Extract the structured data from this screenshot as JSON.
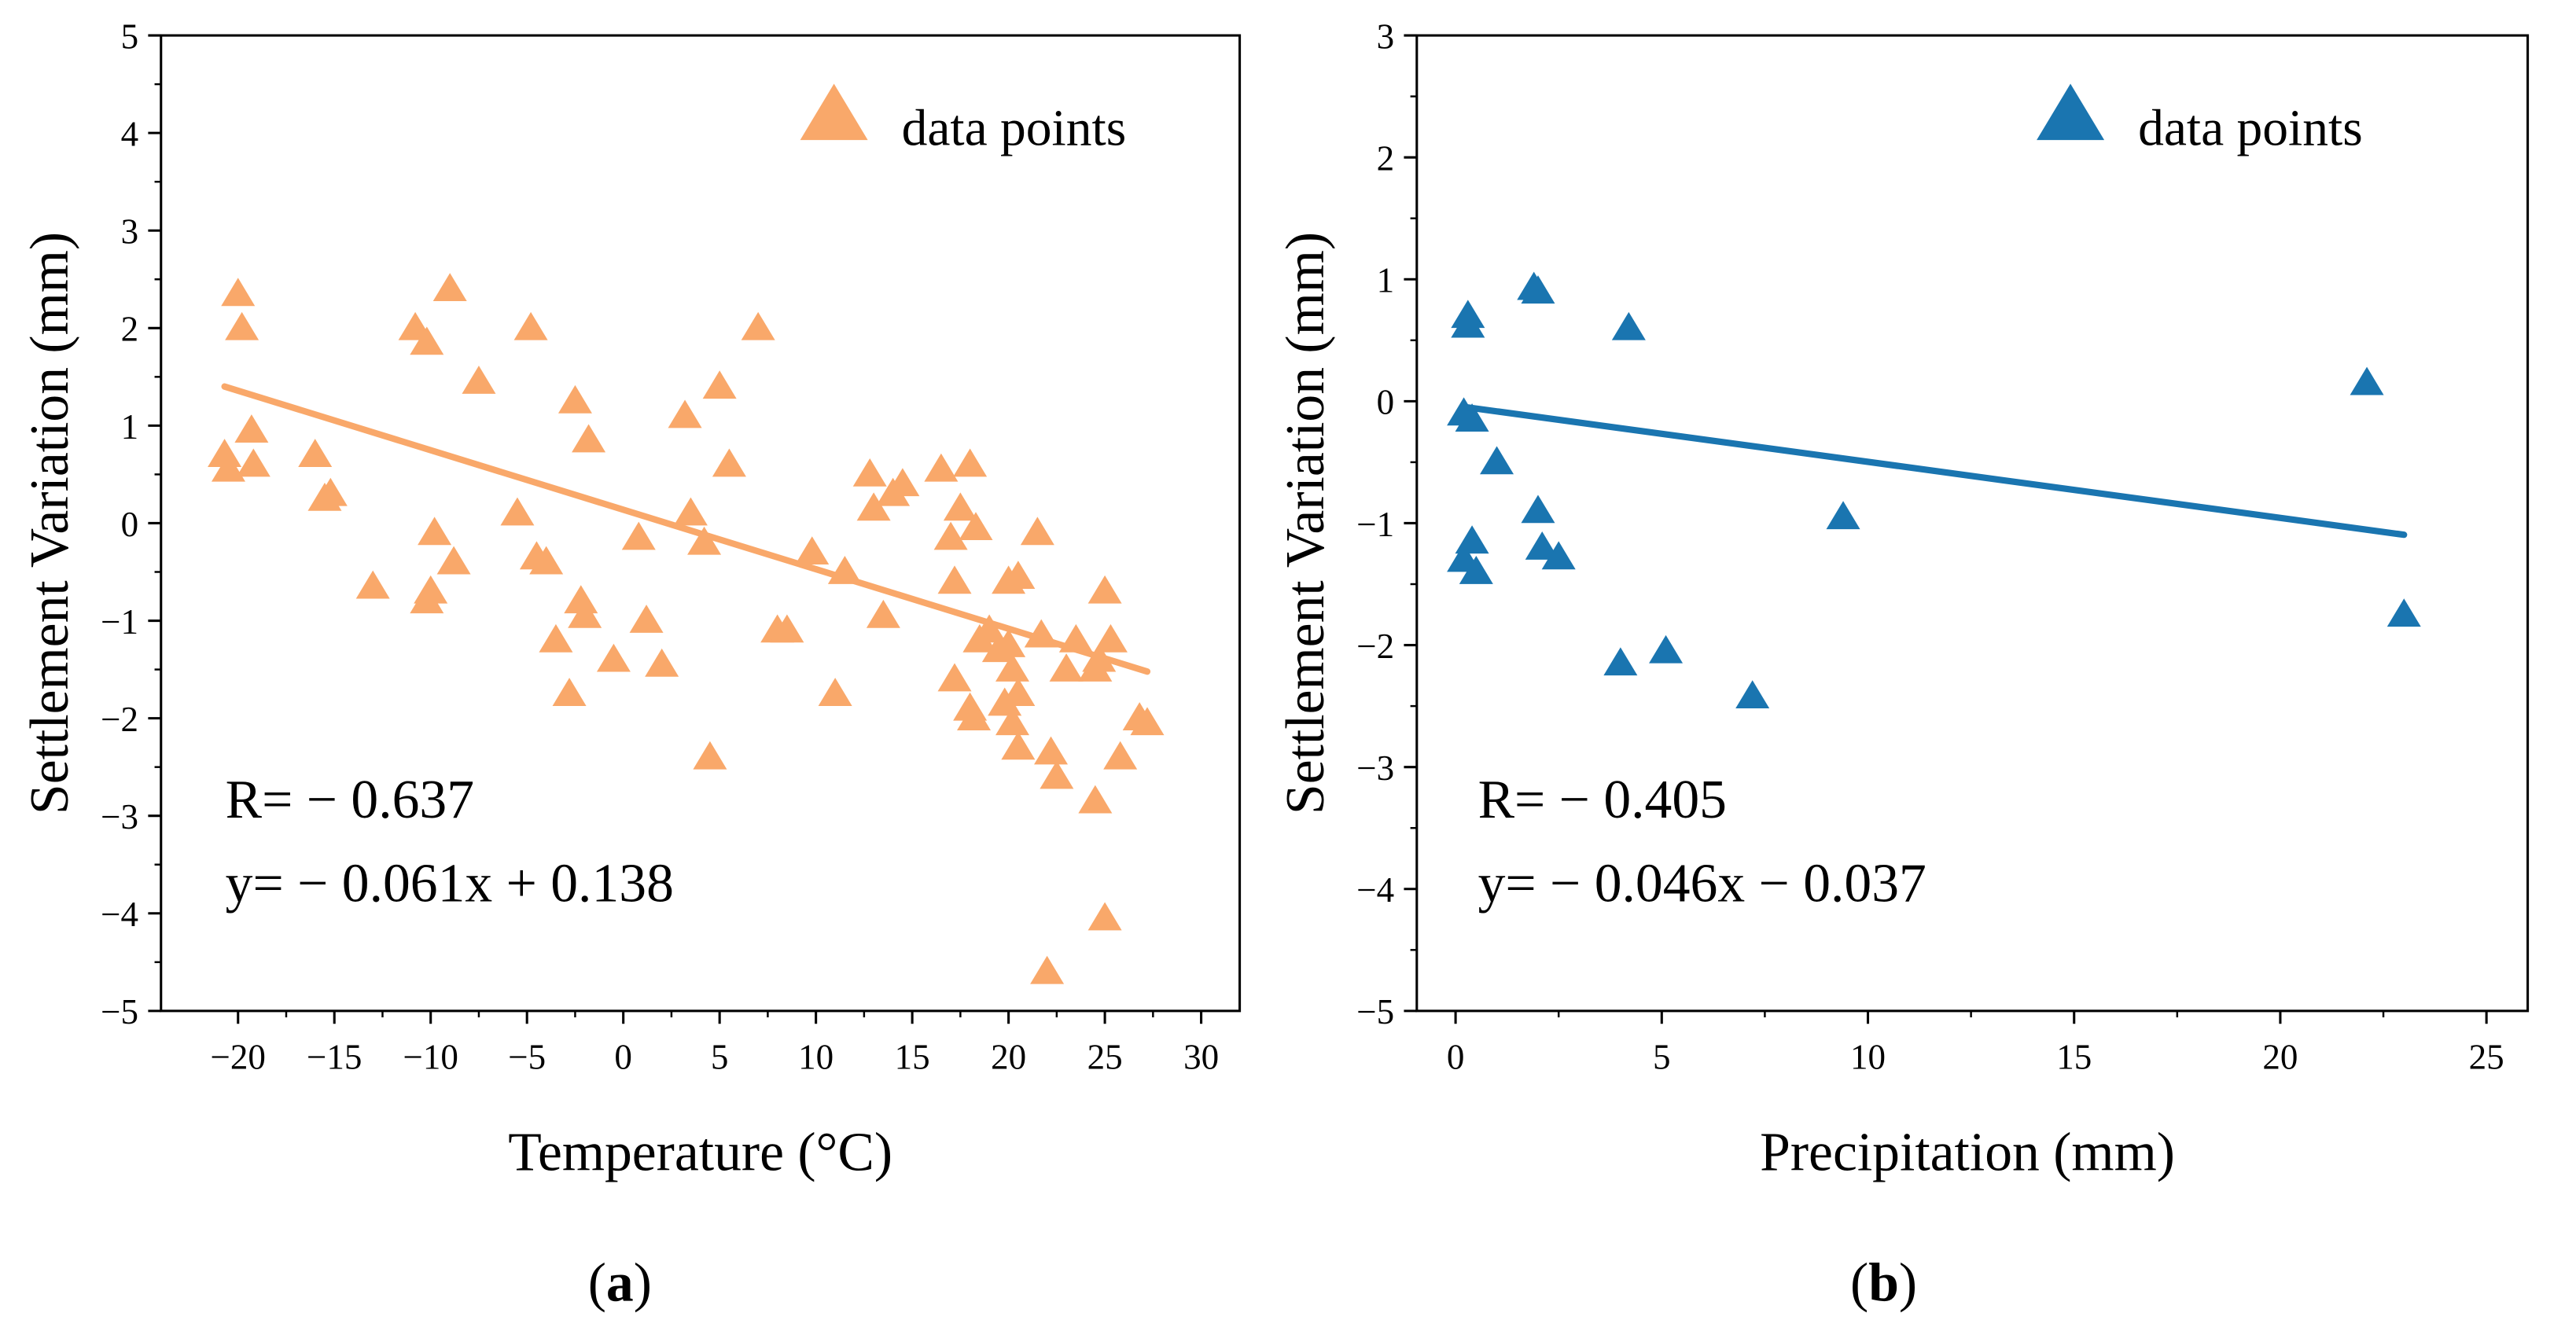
{
  "chart_data": [
    {
      "type": "scatter",
      "panel_label": "(a)",
      "panel_letter": "a",
      "xlabel": "Temperature (°C)",
      "ylabel": "Settlement Variation (mm)",
      "xlim": [
        -24,
        32
      ],
      "ylim": [
        -5,
        5
      ],
      "xticks": [
        -20,
        -15,
        -10,
        -5,
        0,
        5,
        10,
        15,
        20,
        25,
        30
      ],
      "yticks": [
        -5,
        -4,
        -3,
        -2,
        -1,
        0,
        1,
        2,
        3,
        4,
        5
      ],
      "color": "#F9A86A",
      "legend": {
        "label": "data points",
        "placement": "top-right"
      },
      "annotation_r": "R= − 0.637",
      "annotation_eq": "y= − 0.061x + 0.138",
      "fit": {
        "slope": -0.061,
        "intercept": 0.138,
        "x_range": [
          -20.7,
          27.2
        ]
      },
      "points": [
        [
          -20.5,
          0.55
        ],
        [
          -20.7,
          0.7
        ],
        [
          -20,
          2.35
        ],
        [
          -19.8,
          2.0
        ],
        [
          -19.3,
          0.95
        ],
        [
          -19.2,
          0.6
        ],
        [
          -16,
          0.7
        ],
        [
          -15.5,
          0.25
        ],
        [
          -15.2,
          0.3
        ],
        [
          -13,
          -0.65
        ],
        [
          -10.8,
          2.0
        ],
        [
          -10.2,
          1.85
        ],
        [
          -10,
          -0.7
        ],
        [
          -10.2,
          -0.8
        ],
        [
          -9.8,
          -0.1
        ],
        [
          -9,
          2.4
        ],
        [
          -8.8,
          -0.4
        ],
        [
          -7.5,
          1.45
        ],
        [
          -5.5,
          0.1
        ],
        [
          -4.8,
          2.0
        ],
        [
          -4.5,
          -0.35
        ],
        [
          -4,
          -0.4
        ],
        [
          -3.5,
          -1.2
        ],
        [
          -2.8,
          -1.75
        ],
        [
          -2.5,
          1.25
        ],
        [
          -2.2,
          -0.8
        ],
        [
          -2,
          -0.95
        ],
        [
          -1.8,
          0.85
        ],
        [
          -0.5,
          -1.4
        ],
        [
          0.8,
          -0.15
        ],
        [
          1.2,
          -1.0
        ],
        [
          2,
          -1.45
        ],
        [
          3.2,
          1.1
        ],
        [
          3.5,
          0.1
        ],
        [
          4.2,
          -0.2
        ],
        [
          4.5,
          -2.4
        ],
        [
          5,
          1.4
        ],
        [
          5.5,
          0.6
        ],
        [
          7,
          2.0
        ],
        [
          8,
          -1.1
        ],
        [
          8.5,
          -1.1
        ],
        [
          9.8,
          -0.3
        ],
        [
          11,
          -1.75
        ],
        [
          11.5,
          -0.5
        ],
        [
          12.8,
          0.5
        ],
        [
          13,
          0.15
        ],
        [
          13.5,
          -0.95
        ],
        [
          14,
          0.3
        ],
        [
          14.5,
          0.4
        ],
        [
          16.5,
          0.55
        ],
        [
          17,
          -0.15
        ],
        [
          17.2,
          -0.6
        ],
        [
          17.2,
          -1.6
        ],
        [
          17.5,
          0.15
        ],
        [
          18,
          0.6
        ],
        [
          18,
          -1.9
        ],
        [
          18.2,
          -2.0
        ],
        [
          18.5,
          -1.2
        ],
        [
          18.3,
          -0.05
        ],
        [
          19,
          -1.1
        ],
        [
          19.5,
          -1.3
        ],
        [
          19.8,
          -1.85
        ],
        [
          20,
          -0.6
        ],
        [
          20,
          -1.25
        ],
        [
          20.2,
          -1.5
        ],
        [
          20.2,
          -2.05
        ],
        [
          20.5,
          -0.55
        ],
        [
          20.5,
          -1.75
        ],
        [
          20.5,
          -2.3
        ],
        [
          21.5,
          -0.1
        ],
        [
          21.7,
          -1.15
        ],
        [
          22,
          -4.6
        ],
        [
          22.2,
          -2.35
        ],
        [
          22.5,
          -2.6
        ],
        [
          23,
          -1.5
        ],
        [
          23.5,
          -1.2
        ],
        [
          24.5,
          -1.5
        ],
        [
          24.5,
          -2.85
        ],
        [
          24.7,
          -1.4
        ],
        [
          25,
          -0.7
        ],
        [
          25,
          -4.05
        ],
        [
          25.3,
          -1.2
        ],
        [
          25.8,
          -2.4
        ],
        [
          26.8,
          -2.0
        ],
        [
          27.2,
          -2.05
        ]
      ]
    },
    {
      "type": "scatter",
      "panel_label": "(b)",
      "panel_letter": "b",
      "xlabel": "Precipitation (mm)",
      "ylabel": "Settlement Variation (mm)",
      "xlim": [
        -0.94,
        26
      ],
      "ylim": [
        -5,
        3
      ],
      "xticks": [
        0,
        5,
        10,
        15,
        20,
        25
      ],
      "yticks": [
        -5,
        -4,
        -3,
        -2,
        -1,
        0,
        1,
        2,
        3
      ],
      "color": "#1A75B0",
      "legend": {
        "label": "data points",
        "placement": "top-right"
      },
      "annotation_r": "R= − 0.405",
      "annotation_eq": "y= − 0.046x − 0.037",
      "fit": {
        "slope": -0.046,
        "intercept": -0.037,
        "x_range": [
          0.2,
          23
        ]
      },
      "points": [
        [
          0.2,
          -0.1
        ],
        [
          0.3,
          0.7
        ],
        [
          0.3,
          0.62
        ],
        [
          0.4,
          -0.15
        ],
        [
          0.4,
          -1.15
        ],
        [
          0.2,
          -1.3
        ],
        [
          0.5,
          -1.4
        ],
        [
          1.0,
          -0.5
        ],
        [
          1.9,
          0.93
        ],
        [
          2.0,
          0.9
        ],
        [
          2.0,
          -0.9
        ],
        [
          2.1,
          -1.2
        ],
        [
          2.5,
          -1.28
        ],
        [
          4.0,
          -2.15
        ],
        [
          4.2,
          0.6
        ],
        [
          5.1,
          -2.05
        ],
        [
          7.2,
          -2.42
        ],
        [
          9.4,
          -0.95
        ],
        [
          22.1,
          0.15
        ],
        [
          23,
          -1.75
        ]
      ]
    }
  ]
}
